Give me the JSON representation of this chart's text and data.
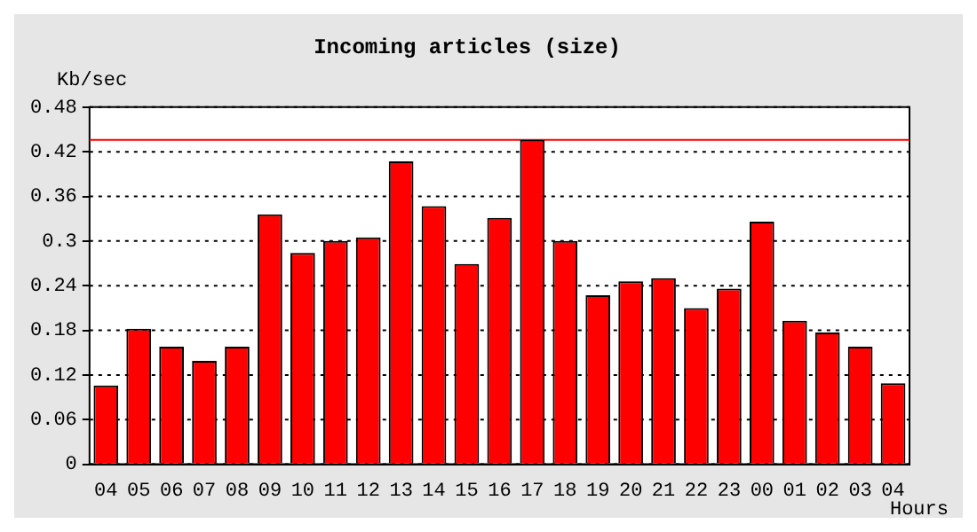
{
  "chart_data": {
    "type": "bar",
    "title": "Incoming articles (size)",
    "ylabel": "Kb/sec",
    "xlabel": "Hours",
    "categories": [
      "04",
      "05",
      "06",
      "07",
      "08",
      "09",
      "10",
      "11",
      "12",
      "13",
      "14",
      "15",
      "16",
      "17",
      "18",
      "19",
      "20",
      "21",
      "22",
      "23",
      "00",
      "01",
      "02",
      "03",
      "04"
    ],
    "series": [
      {
        "color": "#ff0000",
        "values": [
          0.106,
          0.182,
          0.158,
          0.139,
          0.158,
          0.336,
          0.284,
          0.3,
          0.305,
          0.407,
          0.347,
          0.269,
          0.331,
          0.436,
          0.3,
          0.227,
          0.246,
          0.25,
          0.21,
          0.236,
          0.326,
          0.193,
          0.177,
          0.158,
          0.109
        ]
      }
    ],
    "ylim": [
      0,
      0.48
    ],
    "yticks": [
      0,
      0.06,
      0.12,
      0.18,
      0.24,
      0.3,
      0.36,
      0.42,
      0.48
    ],
    "grid": "y",
    "legend": false,
    "ref_lines": [
      {
        "axis": "y",
        "value": 0.436,
        "color": "#ff0000"
      }
    ]
  }
}
